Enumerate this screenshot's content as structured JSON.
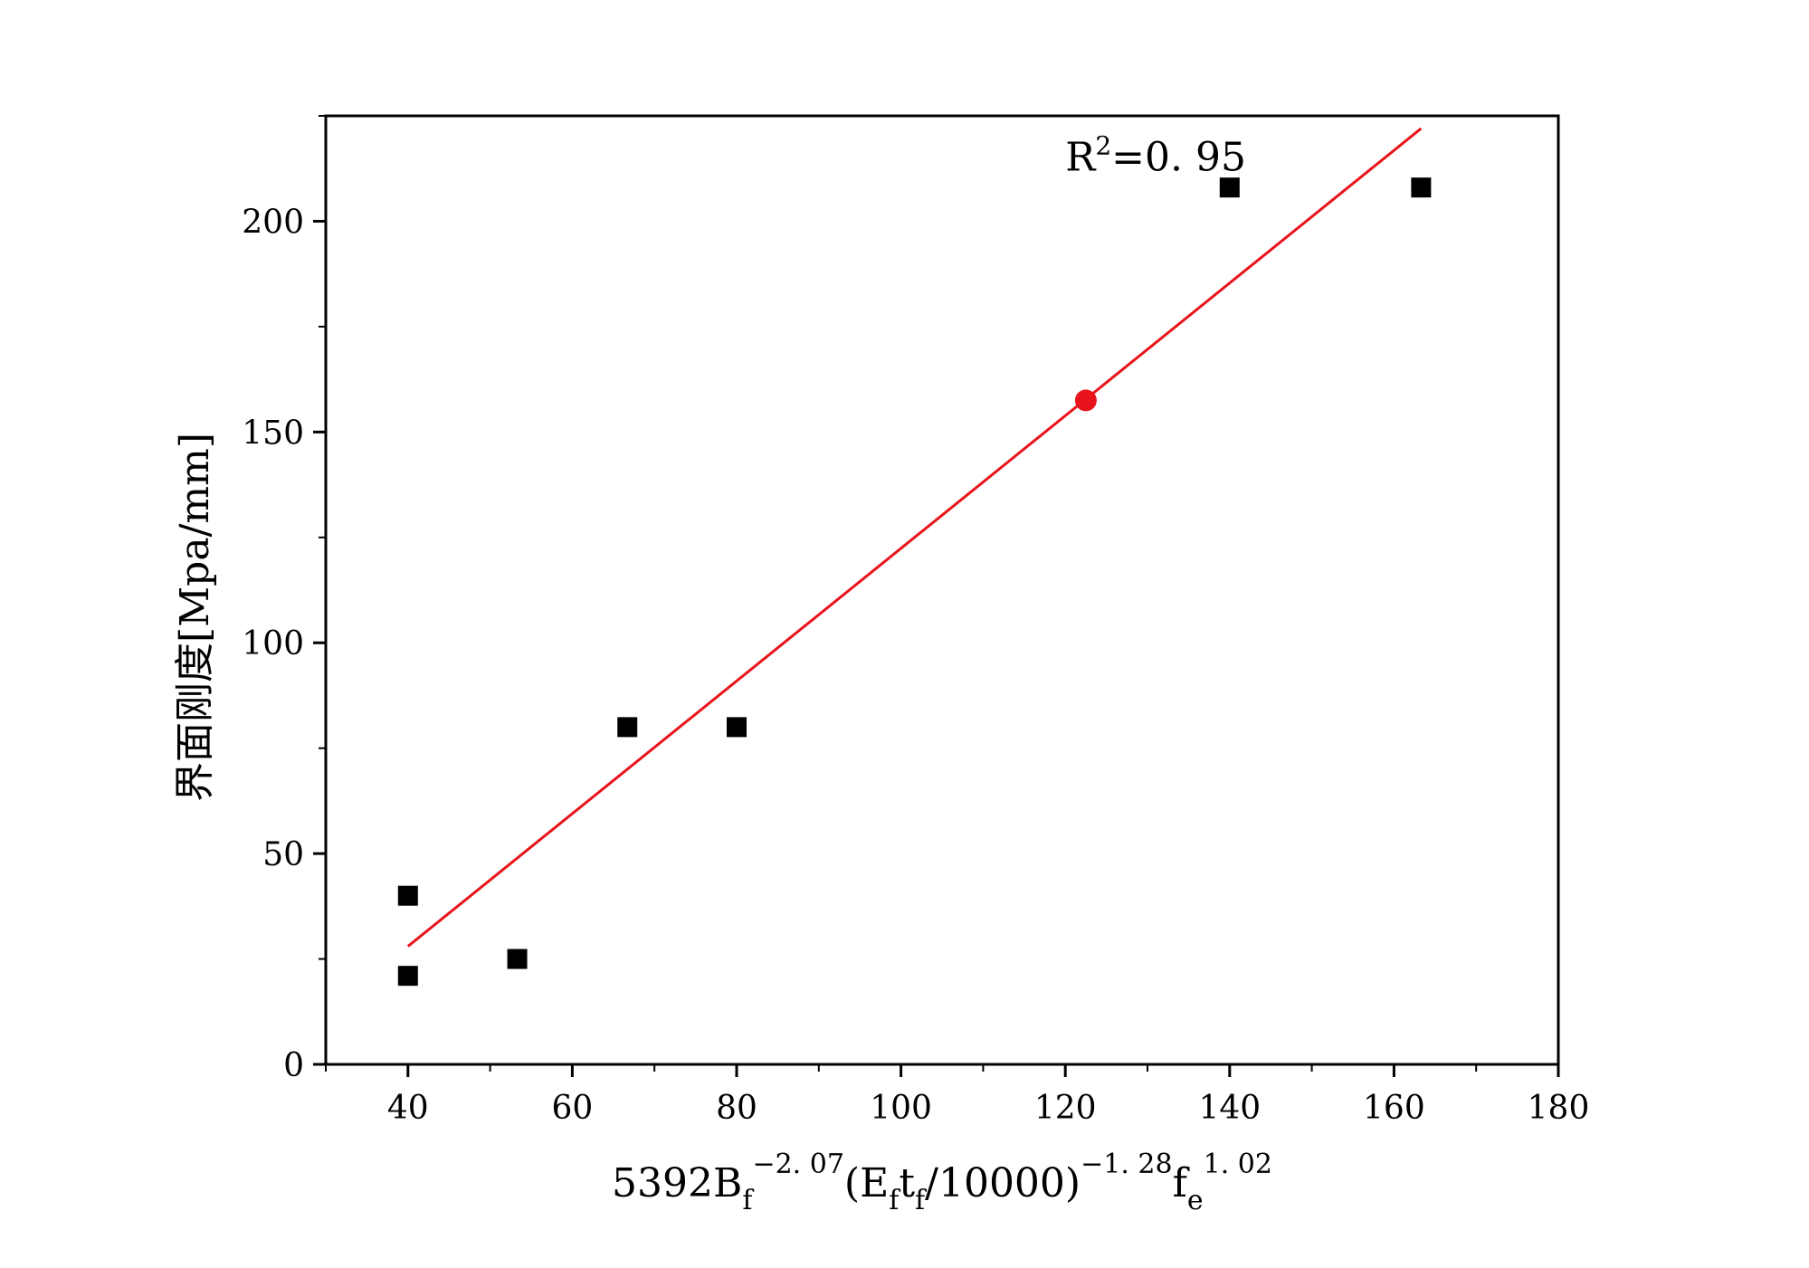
{
  "chart_data": {
    "type": "scatter",
    "title": "",
    "xlabel": {
      "parts": [
        {
          "text": "5392B",
          "style": "normal"
        },
        {
          "text": "f",
          "style": "sub"
        },
        {
          "text": "−2. 07",
          "style": "sup"
        },
        {
          "text": "(E",
          "style": "normal"
        },
        {
          "text": "f",
          "style": "sub"
        },
        {
          "text": "t",
          "style": "normal"
        },
        {
          "text": "f",
          "style": "sub"
        },
        {
          "text": "/10000)",
          "style": "normal"
        },
        {
          "text": "−1. 28",
          "style": "sup"
        },
        {
          "text": "f",
          "style": "normal"
        },
        {
          "text": "e",
          "style": "sub"
        },
        {
          "text": "1. 02",
          "style": "sup"
        }
      ]
    },
    "ylabel": "界面刚度[Mpa/mm]",
    "xlim": [
      30,
      180
    ],
    "ylim": [
      0,
      225
    ],
    "x_ticks": [
      40,
      60,
      80,
      100,
      120,
      140,
      160,
      180
    ],
    "y_ticks": [
      0,
      50,
      100,
      150,
      200
    ],
    "x_minor_step": 10,
    "y_minor_step": 25,
    "grid": false,
    "legend": "none",
    "series": [
      {
        "marker": "square",
        "color": "#000000",
        "points": [
          {
            "x": 40,
            "y": 40
          },
          {
            "x": 40,
            "y": 21
          },
          {
            "x": 53.3,
            "y": 25
          },
          {
            "x": 66.7,
            "y": 80
          },
          {
            "x": 80,
            "y": 80
          },
          {
            "x": 140,
            "y": 208
          },
          {
            "x": 163.3,
            "y": 208
          }
        ]
      },
      {
        "type": "line",
        "color": "#e8141c",
        "points": [
          {
            "x": 40,
            "y": 28
          },
          {
            "x": 163.3,
            "y": 222
          }
        ]
      },
      {
        "marker": "circle",
        "color": "#e8141c",
        "points": [
          {
            "x": 122.5,
            "y": 157.5
          }
        ]
      }
    ],
    "annotations": [
      {
        "text": "R",
        "sup": "2",
        "suffix": "=0. 95",
        "x": 120,
        "y": 212
      }
    ]
  }
}
